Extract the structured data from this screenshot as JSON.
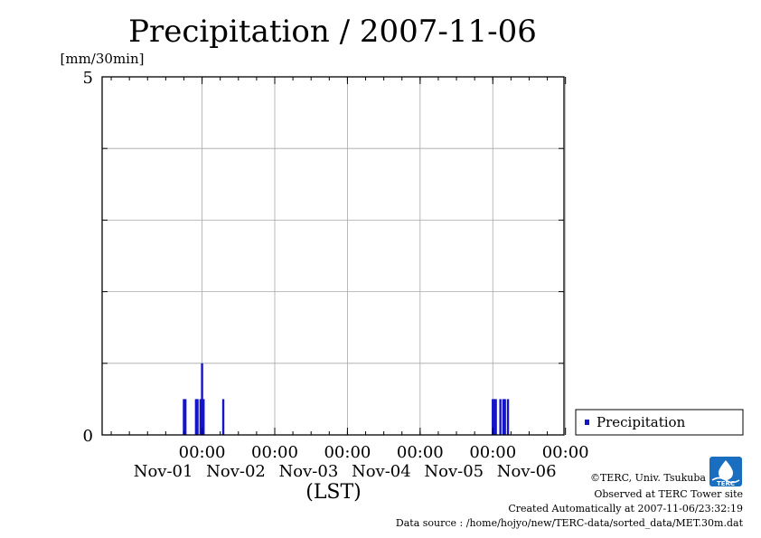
{
  "chart_data": {
    "type": "bar",
    "title": "Precipitation / 2007-11-06",
    "ylabel": "[mm/30min]",
    "xlabel": "(LST)",
    "ylim": [
      0,
      5
    ],
    "y_ticks": [
      "0",
      "5"
    ],
    "xlim": [
      "2007-10-31 15:00",
      "2007-11-06 23:30"
    ],
    "x_tick_time": "00:00",
    "x_tick_days": [
      "Nov-01",
      "Nov-02",
      "Nov-03",
      "Nov-04",
      "Nov-05",
      "Nov-06"
    ],
    "grid": true,
    "legend_position": "right",
    "series": [
      {
        "name": "Precipitation",
        "color": "#1414c8",
        "points": [
          {
            "t": "2007-11-01 18:00",
            "v": 0.5
          },
          {
            "t": "2007-11-01 18:30",
            "v": 0.5
          },
          {
            "t": "2007-11-01 22:00",
            "v": 0.5
          },
          {
            "t": "2007-11-01 22:30",
            "v": 0.5
          },
          {
            "t": "2007-11-01 23:30",
            "v": 0.5
          },
          {
            "t": "2007-11-02 00:00",
            "v": 1.0
          },
          {
            "t": "2007-11-02 00:30",
            "v": 0.5
          },
          {
            "t": "2007-11-02 07:00",
            "v": 0.5
          },
          {
            "t": "2007-11-06 00:00",
            "v": 0.5
          },
          {
            "t": "2007-11-06 00:30",
            "v": 0.5
          },
          {
            "t": "2007-11-06 01:00",
            "v": 0.5
          },
          {
            "t": "2007-11-06 02:30",
            "v": 0.5
          },
          {
            "t": "2007-11-06 03:30",
            "v": 0.5
          },
          {
            "t": "2007-11-06 04:00",
            "v": 0.5
          },
          {
            "t": "2007-11-06 05:00",
            "v": 0.5
          }
        ]
      }
    ]
  },
  "footer": {
    "copyright": "©TERC, Univ. Tsukuba",
    "observed": "Observed at TERC Tower site",
    "created": "Created Automatically at 2007-11-06/23:32:19",
    "source": "Data source : /home/hojyo/new/TERC-data/sorted_data/MET.30m.dat"
  },
  "logo": {
    "text": "TERC",
    "icon": "terc-logo-icon",
    "color": "#1a6ec0"
  }
}
